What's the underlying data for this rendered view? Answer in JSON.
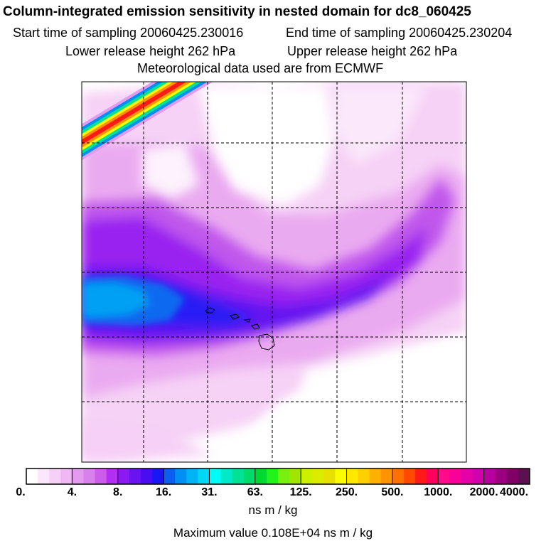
{
  "title": "Column-integrated emission sensitivity in nested domain for dc8_060425",
  "start_label": "Start time of sampling 20060425.230016",
  "end_label": "End time of sampling 20060425.230204",
  "lower_label": "Lower release height  262 hPa",
  "upper_label": "Upper release height  262 hPa",
  "met_label": "Meteorological data used are from ECMWF",
  "colorbar": {
    "ticks": [
      "0.",
      "4.",
      "8.",
      "16.",
      "31.",
      "63.",
      "125.",
      "250.",
      "500.",
      "1000.",
      "2000.",
      "4000."
    ],
    "colors": [
      "#ffffff",
      "#fbe6fb",
      "#f6d0f6",
      "#f0b8f2",
      "#e39bef",
      "#d880ec",
      "#cc5cec",
      "#b22ef0",
      "#8d19f2",
      "#6a12f0",
      "#4a0cf0",
      "#1a16f4",
      "#0a5ef0",
      "#0090f4",
      "#00b4f6",
      "#00d8f4",
      "#00fcf8",
      "#00eac8",
      "#00e296",
      "#00dc6a",
      "#00d832",
      "#20f418",
      "#78f010",
      "#a0e600",
      "#ccf000",
      "#dcec00",
      "#e8e000",
      "#fcfc00",
      "#ffe800",
      "#ffd000",
      "#ffb000",
      "#ff9400",
      "#ff7000",
      "#ff4a00",
      "#ff1a1a",
      "#ff005a",
      "#ff0a8a",
      "#f80099",
      "#e600a8",
      "#d200ac",
      "#b8009e",
      "#9a0080",
      "#800066",
      "#5c1050"
    ],
    "units": "ns m / kg"
  },
  "max_label": "Maximum value  0.108E+04 ns m / kg",
  "chart_data": {
    "type": "heatmap",
    "title": "Column-integrated emission sensitivity in nested domain for dc8_060425",
    "colorbar_levels": [
      0,
      4,
      8,
      16,
      31,
      63,
      125,
      250,
      500,
      1000,
      2000,
      4000
    ],
    "colorbar_units": "ns m / kg",
    "maximum_value": 1080,
    "regions": [
      {
        "area": "west band near Hawaii",
        "level_range": [
          16,
          31
        ]
      },
      {
        "area": "arc band across center",
        "level_range": [
          8,
          16
        ]
      },
      {
        "area": "northwest corner streak",
        "level_range": [
          125,
          1000
        ]
      },
      {
        "area": "north-central clear patch",
        "level_range": [
          0,
          4
        ]
      },
      {
        "area": "south and southeast",
        "level_range": [
          0,
          4
        ]
      }
    ],
    "grid": true
  }
}
